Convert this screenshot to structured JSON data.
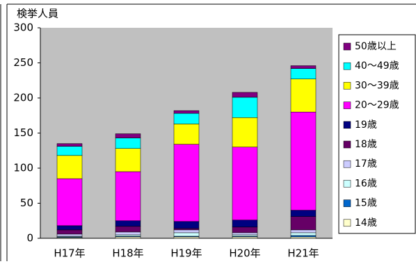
{
  "chart_data": {
    "type": "stacked_bar",
    "ylabel": "検挙人員",
    "categories": [
      "H17年",
      "H18年",
      "H19年",
      "H20年",
      "H21年"
    ],
    "series": [
      {
        "name": "14歳",
        "color": "#ffffcc",
        "values": [
          1,
          2,
          2,
          2,
          2
        ]
      },
      {
        "name": "15歳",
        "color": "#0066cc",
        "values": [
          1,
          1,
          1,
          1,
          2
        ]
      },
      {
        "name": "16歳",
        "color": "#ccffff",
        "values": [
          1,
          2,
          5,
          2,
          4
        ]
      },
      {
        "name": "17歳",
        "color": "#ccccff",
        "values": [
          3,
          4,
          4,
          3,
          4
        ]
      },
      {
        "name": "18歳",
        "color": "#660066",
        "values": [
          6,
          8,
          2,
          8,
          19
        ]
      },
      {
        "name": "19歳",
        "color": "#000080",
        "values": [
          6,
          8,
          10,
          10,
          9
        ]
      },
      {
        "name": "20～29歳",
        "color": "#ff00ff",
        "values": [
          67,
          70,
          110,
          104,
          140
        ]
      },
      {
        "name": "30～39歳",
        "color": "#ffff00",
        "values": [
          33,
          33,
          29,
          42,
          47
        ]
      },
      {
        "name": "40～49歳",
        "color": "#00ffff",
        "values": [
          13,
          15,
          15,
          29,
          15
        ]
      },
      {
        "name": "50歳以上",
        "color": "#800080",
        "values": [
          4,
          6,
          4,
          7,
          4
        ]
      }
    ],
    "ylim": [
      0,
      300
    ],
    "yticks": [
      0,
      50,
      100,
      150,
      200,
      250,
      300
    ],
    "legend": "right"
  }
}
